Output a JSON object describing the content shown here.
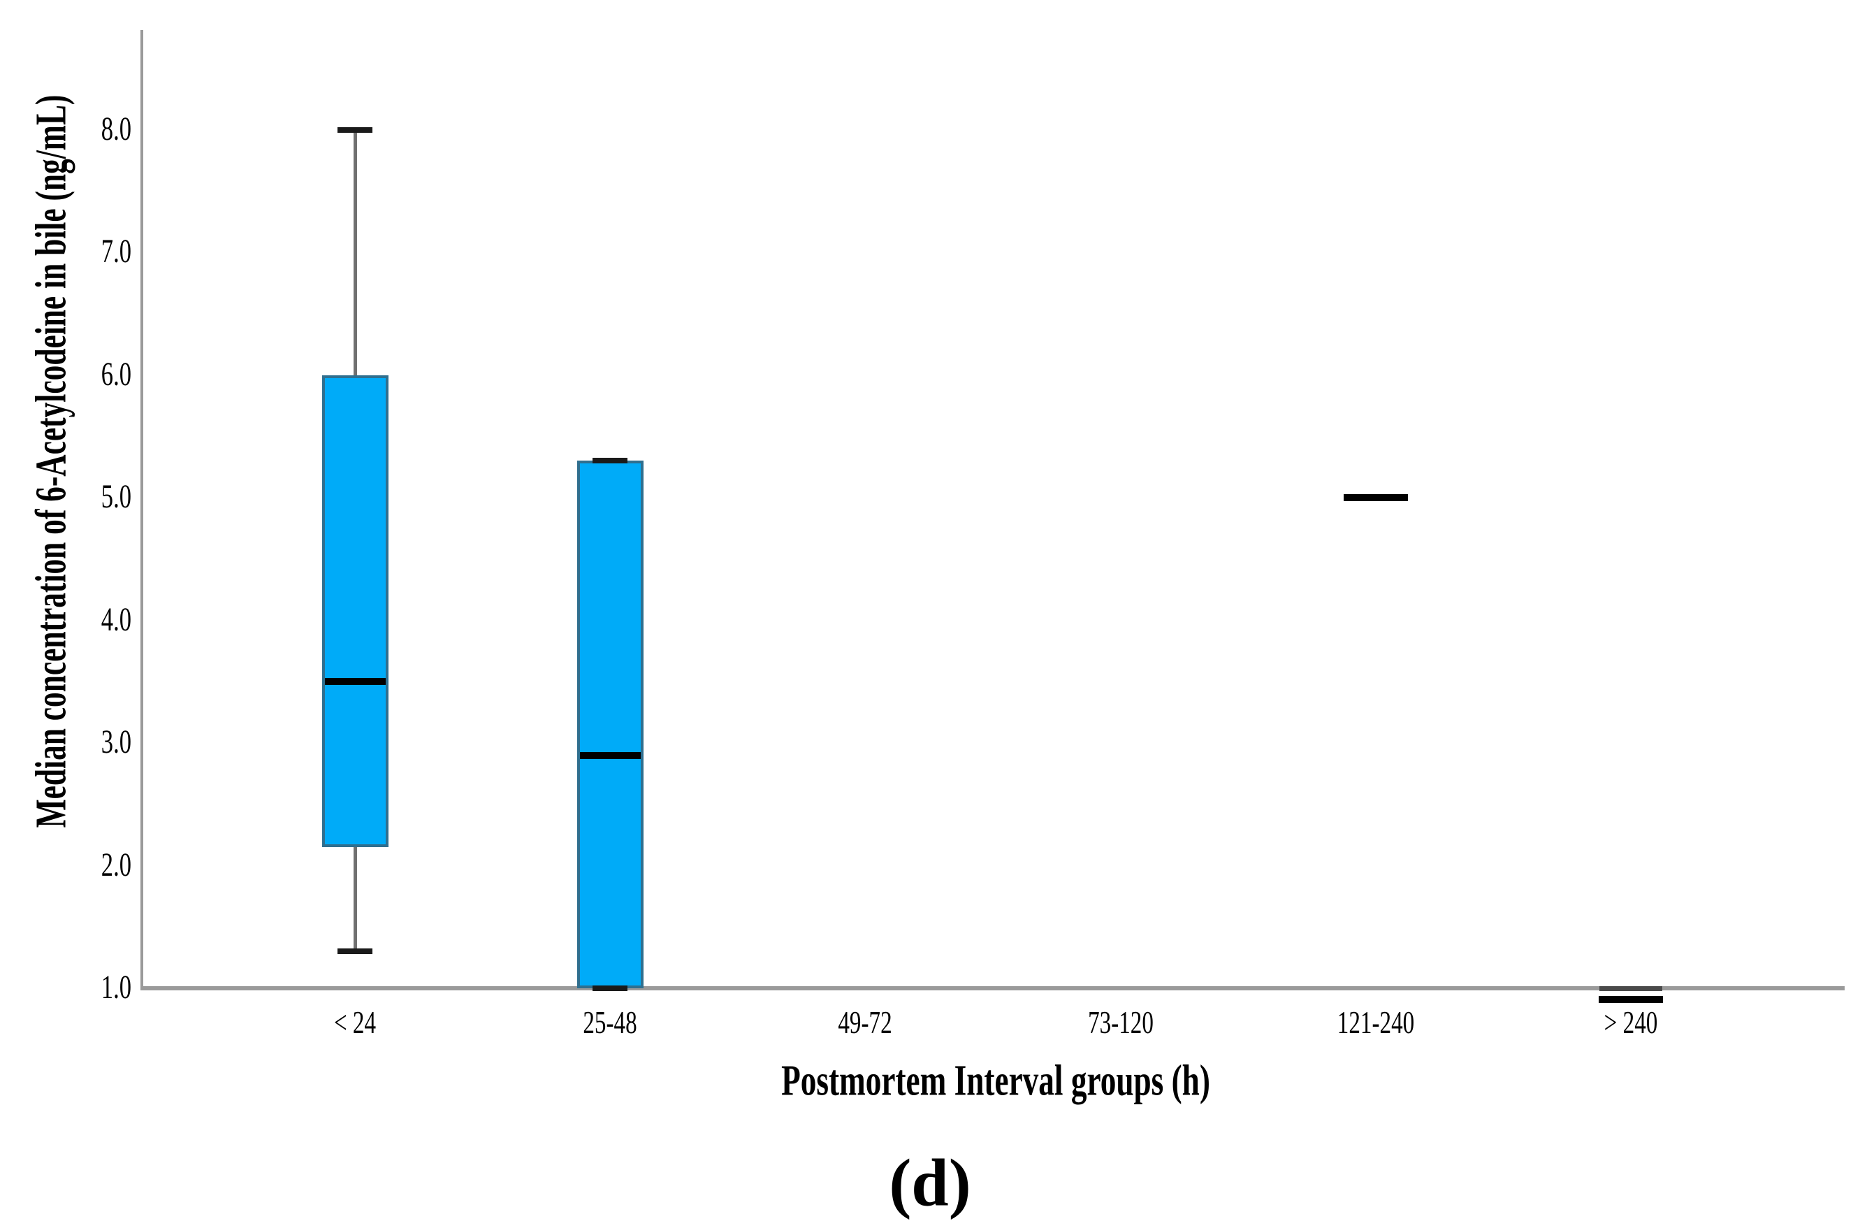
{
  "figure": {
    "caption": "(d)"
  },
  "chart_data": {
    "type": "boxplot",
    "title": "",
    "xlabel": "Postmortem Interval groups (h)",
    "ylabel": "Median concentration of 6-Acetylcodeine in bile (ng/mL)",
    "categories": [
      "< 24",
      "25-48",
      "49-72",
      "73-120",
      "121-240",
      "> 240"
    ],
    "y_ticks": [
      8.0,
      7.0,
      6.0,
      5.0,
      4.0,
      3.0,
      2.0,
      1.0
    ],
    "y_tick_labels": [
      "8.0",
      "7.0",
      "6.0",
      "5.0",
      "4.0",
      "3.0",
      "2.0",
      "1.0"
    ],
    "ylim": [
      1.0,
      8.9
    ],
    "grid": false,
    "tick_marks": false,
    "legend": false,
    "groups": [
      {
        "category": "< 24",
        "type": "box",
        "whisker_low": 1.3,
        "q1": 2.15,
        "median": 3.5,
        "q3": 6.0,
        "whisker_high": 8.0
      },
      {
        "category": "25-48",
        "type": "box",
        "whisker_low": 1.0,
        "q1": 1.0,
        "median": 2.9,
        "q3": 5.3,
        "whisker_high": 5.3
      },
      {
        "category": "49-72",
        "type": "empty"
      },
      {
        "category": "73-120",
        "type": "empty"
      },
      {
        "category": "121-240",
        "type": "single",
        "value": 5.0
      },
      {
        "category": "> 240",
        "type": "single",
        "value": 0.91,
        "upper_edge": 1.0,
        "clipped_below_axis": true
      }
    ]
  },
  "colors": {
    "background": "#ffffff",
    "box_fill": "#00ABF8",
    "box_border": "#2F6F8F",
    "median": "#000000",
    "whisker": "#707070",
    "whisker_cap": "#1A1A1A",
    "axis": "#9A9A9A",
    "clipped_mark": "#4A4A4A",
    "text": "#000000"
  }
}
